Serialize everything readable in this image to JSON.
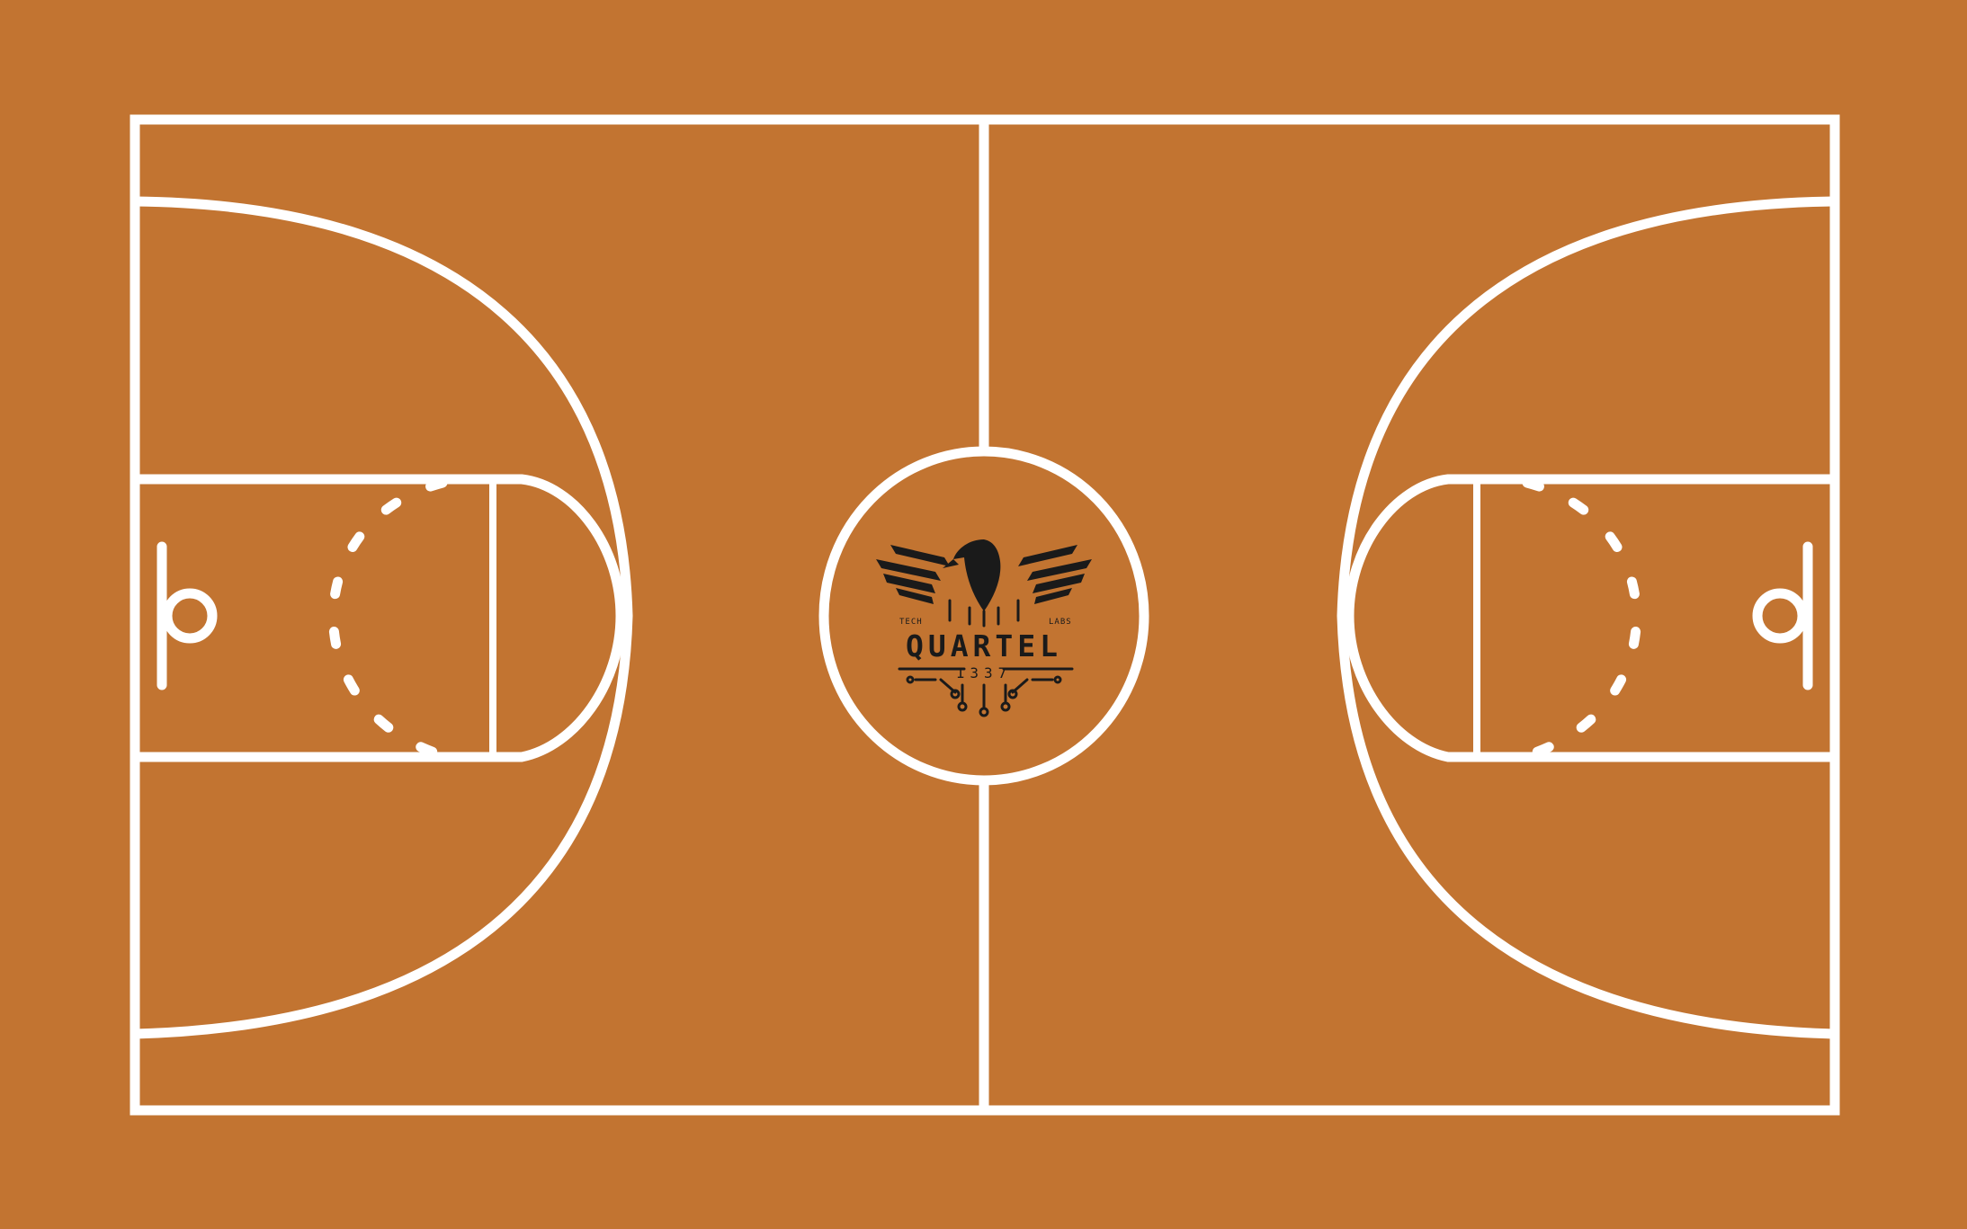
{
  "court": {
    "floor_color": "#c27431",
    "line_color": "#ffffff"
  },
  "logo": {
    "icon": "eagle-icon",
    "title": "QUARTEL",
    "number": "1337",
    "left_tag": "TECH",
    "right_tag": "LABS",
    "ink_color": "#1a1a1a"
  }
}
